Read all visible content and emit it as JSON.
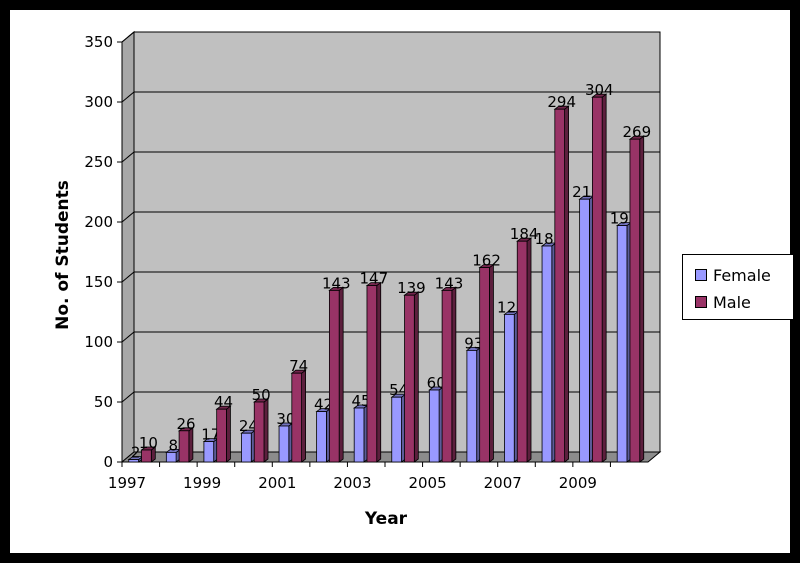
{
  "chart_data": {
    "type": "bar",
    "title": "",
    "xlabel": "Year",
    "ylabel": "No. of Students",
    "ylim": [
      0,
      350
    ],
    "yticks": [
      0,
      50,
      100,
      150,
      200,
      250,
      300,
      350
    ],
    "categories": [
      "1997",
      "1998",
      "1999",
      "2000",
      "2001",
      "2002",
      "2003",
      "2004",
      "2005",
      "2006",
      "2007",
      "2008",
      "2009",
      "2010"
    ],
    "category_labels_shown": [
      "1997",
      "",
      "1999",
      "",
      "2001",
      "",
      "2003",
      "",
      "2005",
      "",
      "2007",
      "",
      "2009",
      ""
    ],
    "series": [
      {
        "name": "Female",
        "color": "#9999ff",
        "values": [
          2,
          8,
          17,
          24,
          30,
          42,
          45,
          54,
          60,
          93,
          123,
          180,
          219,
          197
        ]
      },
      {
        "name": "Male",
        "color": "#993366",
        "values": [
          10,
          26,
          44,
          50,
          74,
          143,
          147,
          139,
          143,
          162,
          184,
          294,
          304,
          269
        ]
      }
    ],
    "grid": true,
    "legend_position": "right",
    "plot_background": "#c0c0c0"
  }
}
